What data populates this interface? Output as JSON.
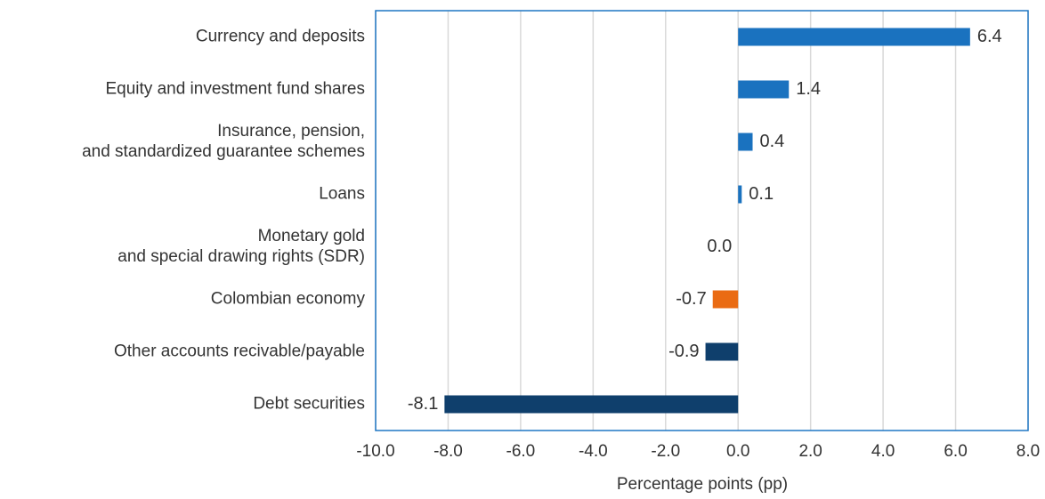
{
  "chart_data": {
    "type": "barh",
    "categories": [
      "Currency and deposits",
      "Equity and investment fund shares",
      "Insurance, pension,\nand standardized guarantee schemes",
      "Loans",
      "Monetary gold\nand special drawing rights (SDR)",
      "Colombian economy",
      "Other accounts recivable/payable",
      "Debt securities"
    ],
    "values": [
      6.4,
      1.4,
      0.4,
      0.1,
      0.0,
      -0.7,
      -0.9,
      -8.1
    ],
    "value_labels": [
      "6.4",
      "1.4",
      "0.4",
      "0.1",
      "0.0",
      "-0.7",
      "-0.9",
      "-8.1"
    ],
    "colors": [
      "#1a72bf",
      "#1a72bf",
      "#1a72bf",
      "#1a72bf",
      "#1a72bf",
      "#ea6b13",
      "#0f3f6c",
      "#0f3f6c"
    ],
    "xlabel": "Percentage points (pp)",
    "xlim": [
      -10,
      8
    ],
    "xticks": [
      {
        "value": -10,
        "label": "-10.0"
      },
      {
        "value": -8,
        "label": "-8.0"
      },
      {
        "value": -6,
        "label": "-6.0"
      },
      {
        "value": -4,
        "label": "-4.0"
      },
      {
        "value": -2,
        "label": "-2.0"
      },
      {
        "value": 0,
        "label": "0.0"
      },
      {
        "value": 2,
        "label": "2.0"
      },
      {
        "value": 4,
        "label": "4.0"
      },
      {
        "value": 6,
        "label": "6.0"
      },
      {
        "value": 8,
        "label": "8.0"
      }
    ],
    "grid": true
  }
}
